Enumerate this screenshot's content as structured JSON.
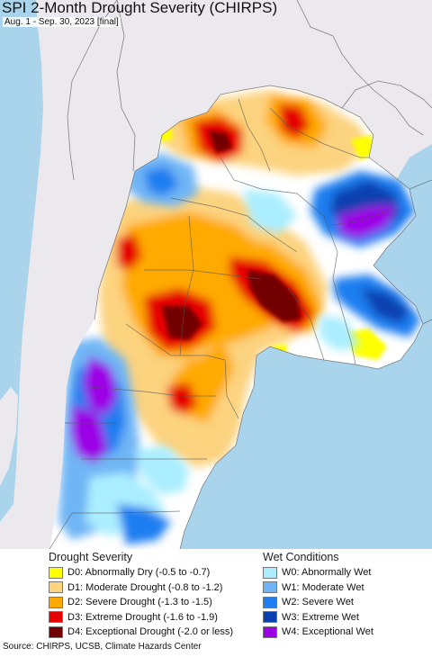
{
  "title": "SPI 2-Month Drought Severity (CHIRPS)",
  "subtitle": "Aug. 1 - Sep. 30, 2023 [final]",
  "map": {
    "colors": {
      "ocean": "#a9d4ec",
      "outside_land": "#ece9ee",
      "normal": "#ffffff",
      "borders": "#555555"
    }
  },
  "legend": {
    "drought": {
      "heading": "Drought Severity",
      "items": [
        {
          "label": "D0: Abnormally Dry (-0.5 to -0.7)",
          "color": "#ffff00"
        },
        {
          "label": "D1: Moderate Drought (-0.8 to -1.2)",
          "color": "#fcd37f"
        },
        {
          "label": "D2: Severe Drought (-1.3 to -1.5)",
          "color": "#ffaa00"
        },
        {
          "label": "D3: Extreme Drought (-1.6 to -1.9)",
          "color": "#e60000"
        },
        {
          "label": "D4: Exceptional Drought (-2.0 or less)",
          "color": "#730000"
        }
      ]
    },
    "wet": {
      "heading": "Wet Conditions",
      "items": [
        {
          "label": "W0: Abnormally Wet",
          "color": "#aaeeff"
        },
        {
          "label": "W1: Moderate Wet",
          "color": "#6fb5f5"
        },
        {
          "label": "W2: Severe Wet",
          "color": "#1f7ef0"
        },
        {
          "label": "W3: Extreme Wet",
          "color": "#0a3fb0"
        },
        {
          "label": "W4: Exceptional Wet",
          "color": "#9b00e6"
        }
      ]
    }
  },
  "source": "Source: CHIRPS, UCSB, Climate Hazards Center"
}
